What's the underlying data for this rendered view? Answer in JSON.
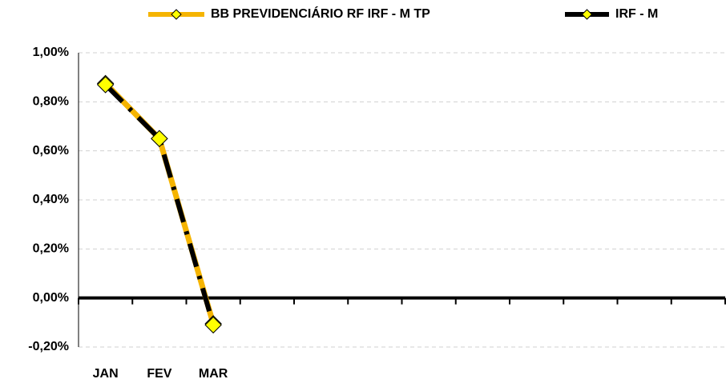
{
  "chart_data": {
    "type": "line",
    "categories": [
      "JAN",
      "FEV",
      "MAR",
      null,
      null,
      null,
      null,
      null,
      null,
      null,
      null,
      null
    ],
    "series": [
      {
        "name": "BB PREVIDENCIÁRIO RF IRF - M TP",
        "color": "#f5b400",
        "marker_color": "#ffff00",
        "values": [
          0.875,
          0.65,
          -0.105,
          null,
          null,
          null,
          null,
          null,
          null,
          null,
          null,
          null
        ]
      },
      {
        "name": "IRF - M",
        "color": "#000000",
        "marker_color": "#ffff00",
        "dashed": true,
        "values": [
          0.87,
          0.65,
          -0.11,
          null,
          null,
          null,
          null,
          null,
          null,
          null,
          null,
          null
        ]
      }
    ],
    "ylim": [
      -0.2,
      1.0
    ],
    "yticks": [
      {
        "value": -0.2,
        "label": "-0,20%"
      },
      {
        "value": 0,
        "label": "0,00%"
      },
      {
        "value": 0.2,
        "label": "0,20%"
      },
      {
        "value": 0.4,
        "label": "0,40%"
      },
      {
        "value": 0.6,
        "label": "0,60%"
      },
      {
        "value": 0.8,
        "label": "0,80%"
      },
      {
        "value": 1.0,
        "label": "1,00%"
      }
    ],
    "grid": true,
    "legend": "top"
  }
}
